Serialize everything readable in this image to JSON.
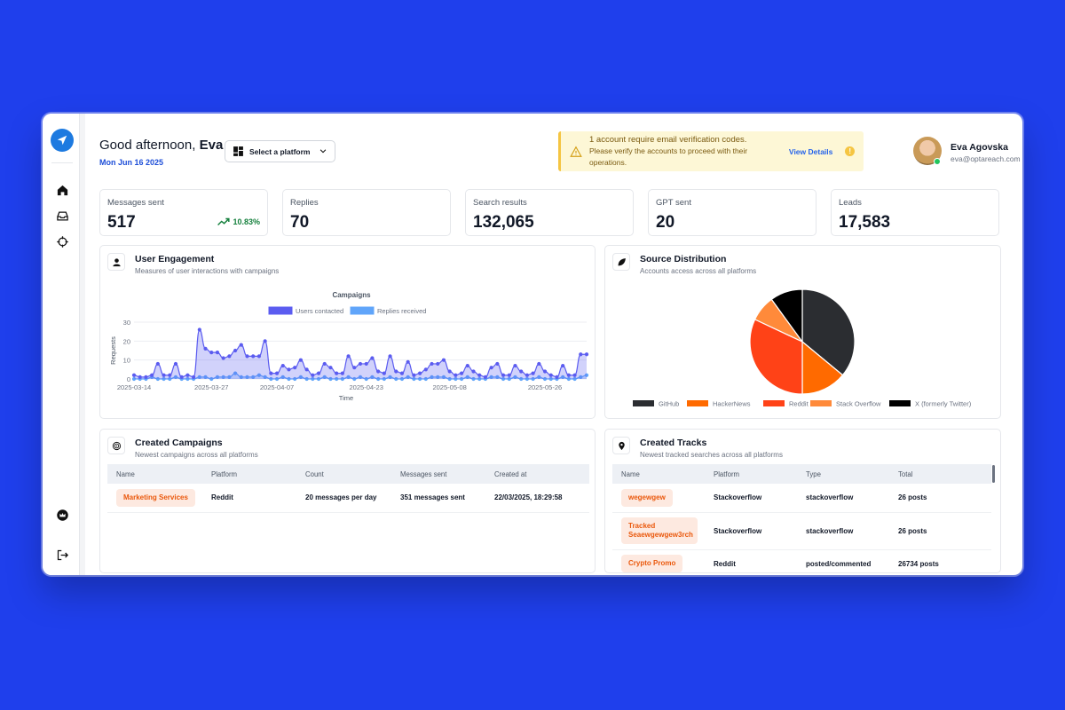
{
  "header": {
    "greeting_prefix": "Good afternoon, ",
    "greeting_name": "Eva",
    "date": "Mon Jun 16 2025",
    "platform_select": "Select a platform"
  },
  "alert": {
    "line1": "1 account require email verification codes.",
    "line2": "Please verify the accounts to proceed with their operations.",
    "action": "View Details"
  },
  "user": {
    "name": "Eva Agovska",
    "email": "eva@optareach.com"
  },
  "stats": [
    {
      "label": "Messages sent",
      "value": "517",
      "trend": "10.83%"
    },
    {
      "label": "Replies",
      "value": "70"
    },
    {
      "label": "Search results",
      "value": "132,065"
    },
    {
      "label": "GPT sent",
      "value": "20"
    },
    {
      "label": "Leads",
      "value": "17,583"
    }
  ],
  "engagement": {
    "title": "User Engagement",
    "subtitle": "Measures of user interactions with campaigns"
  },
  "source": {
    "title": "Source Distribution",
    "subtitle": "Accounts access across all platforms"
  },
  "campaigns": {
    "title": "Created Campaigns",
    "subtitle": "Newest campaigns across all platforms",
    "headers": [
      "Name",
      "Platform",
      "Count",
      "Messages sent",
      "Created at"
    ],
    "rows": [
      [
        "Marketing Services",
        "Reddit",
        "20 messages per day",
        "351 messages sent",
        "22/03/2025, 18:29:58"
      ]
    ]
  },
  "tracks": {
    "title": "Created Tracks",
    "subtitle": "Newest tracked searches across all platforms",
    "headers": [
      "Name",
      "Platform",
      "Type",
      "Total"
    ],
    "rows": [
      [
        "wegewgew",
        "Stackoverflow",
        "stackoverflow",
        "26 posts"
      ],
      [
        "Tracked Seaewgewgew3rch",
        "Stackoverflow",
        "stackoverflow",
        "26 posts"
      ],
      [
        "Crypto Promo",
        "Reddit",
        "posted/commented",
        "26734 posts"
      ]
    ]
  },
  "colors": {
    "accent": "#1d4ed8",
    "users_contacted": "#5b5cf0",
    "replies_received": "#60a5fa",
    "pill_bg": "#fde9e0",
    "pill_text": "#ea580c"
  },
  "chart_data": [
    {
      "type": "area",
      "title": "Campaigns",
      "xlabel": "Time",
      "ylabel": "Requests",
      "ylim": [
        0,
        30
      ],
      "yticks": [
        "0",
        "10",
        "20",
        "30"
      ],
      "xticks": [
        "2025-03-14",
        "2025-03-27",
        "2025-04-07",
        "2025-04-23",
        "2025-05-08",
        "2025-05-26"
      ],
      "grid": true,
      "legend": "top",
      "series": [
        {
          "name": "Users contacted",
          "color": "#5b5cf0",
          "values": [
            2,
            1,
            1,
            2,
            8,
            2,
            2,
            8,
            1,
            2,
            1,
            26,
            16,
            14,
            14,
            11,
            12,
            15,
            18,
            12,
            12,
            12,
            20,
            3,
            3,
            7,
            5,
            6,
            10,
            5,
            2,
            3,
            8,
            6,
            3,
            3,
            12,
            6,
            8,
            8,
            11,
            4,
            3,
            12,
            4,
            3,
            9,
            2,
            3,
            5,
            8,
            8,
            10,
            4,
            2,
            3,
            7,
            4,
            2,
            1,
            6,
            8,
            2,
            2,
            7,
            4,
            2,
            3,
            8,
            4,
            2,
            1,
            7,
            2,
            2,
            13,
            13
          ]
        },
        {
          "name": "Replies received",
          "color": "#60a5fa",
          "values": [
            0,
            0,
            0,
            1,
            0,
            0,
            0,
            1,
            0,
            0,
            0,
            1,
            1,
            0,
            1,
            1,
            1,
            3,
            1,
            1,
            1,
            2,
            1,
            0,
            0,
            1,
            0,
            0,
            1,
            0,
            0,
            0,
            1,
            0,
            0,
            0,
            1,
            0,
            1,
            0,
            1,
            0,
            0,
            1,
            0,
            0,
            1,
            0,
            0,
            0,
            1,
            1,
            1,
            0,
            0,
            0,
            1,
            0,
            0,
            0,
            1,
            1,
            0,
            0,
            1,
            0,
            0,
            0,
            1,
            0,
            0,
            0,
            1,
            0,
            0,
            1,
            2
          ]
        }
      ]
    },
    {
      "type": "pie",
      "categories": [
        "GitHub",
        "HackerNews",
        "Reddit",
        "Stack Overflow",
        "X (formerly Twitter)"
      ],
      "values": [
        36,
        14,
        32,
        8,
        10
      ],
      "colors": [
        "#2b2d31",
        "#ff6a00",
        "#ff4217",
        "#ff8a3a",
        "#000000"
      ]
    }
  ]
}
